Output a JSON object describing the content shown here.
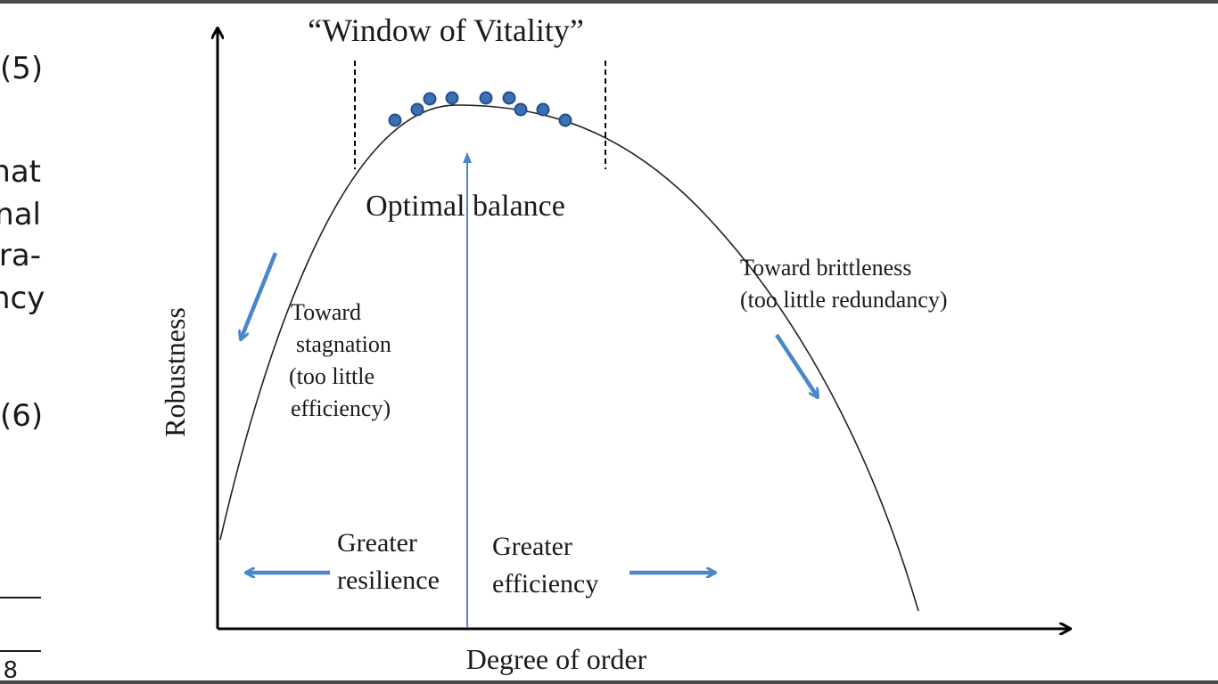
{
  "page_fragment": {
    "eq5": "(5)",
    "lines": [
      "hat",
      "nal",
      "ra-",
      "ncy"
    ],
    "eq6": "(6)",
    "page_number": "8"
  },
  "diagram": {
    "title": "“Window of Vitality”",
    "peak_label": "Optimal balance",
    "y_axis_label": "Robustness",
    "x_axis_label": "Degree of order",
    "left_annotation": [
      "Toward",
      "stagnation",
      "(too little",
      "efficiency)"
    ],
    "right_annotation": [
      "Toward brittleness",
      "(too little redundancy)"
    ],
    "resilience_label": [
      "Greater",
      "resilience"
    ],
    "efficiency_label": [
      "Greater",
      "efficiency"
    ],
    "colors": {
      "curve": "#222222",
      "arrow": "#4a86c8",
      "dot_fill": "#3d6fb3",
      "dot_stroke": "#1f4f8f",
      "axis": "#000000"
    }
  }
}
